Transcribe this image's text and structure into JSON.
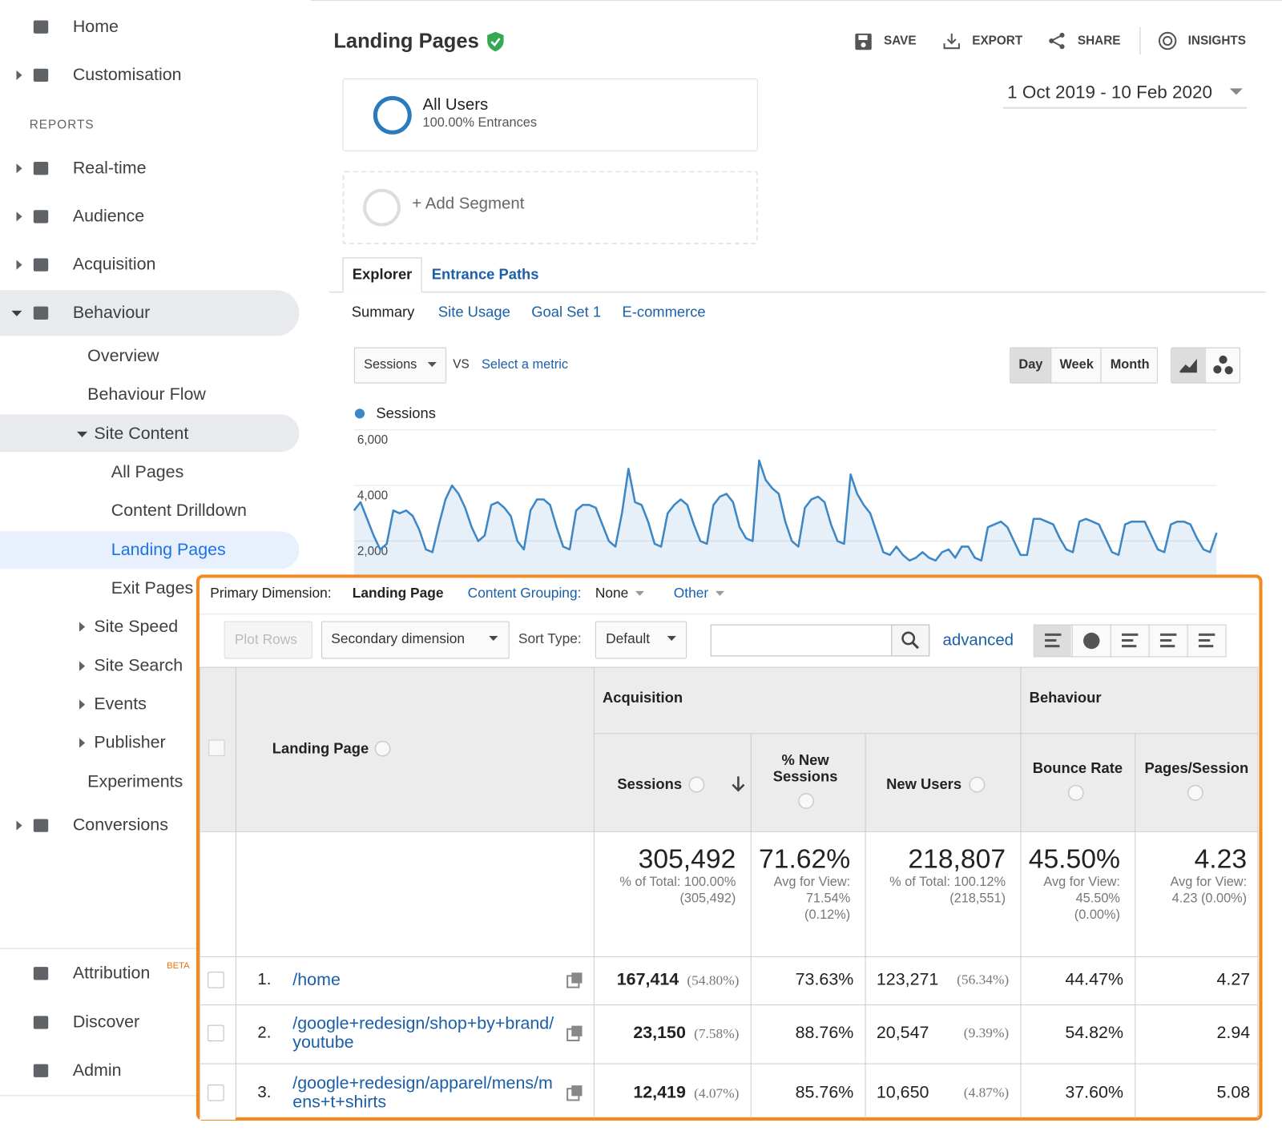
{
  "sidebar": {
    "items": [
      "Home",
      "Customisation",
      "REPORTS",
      "Real-time",
      "Audience",
      "Acquisition",
      "Behaviour",
      "Overview",
      "Behaviour Flow",
      "Site Content",
      "All Pages",
      "Content Drilldown",
      "Landing Pages",
      "Exit Pages",
      "Site Speed",
      "Site Search",
      "Events",
      "Publisher",
      "Experiments",
      "Conversions",
      "Attribution",
      "Discover",
      "Admin"
    ],
    "beta": "BETA"
  },
  "header": {
    "title": "Landing Pages",
    "actions": [
      "SAVE",
      "EXPORT",
      "SHARE",
      "INSIGHTS"
    ],
    "date_range": "1 Oct 2019 - 10 Feb 2020"
  },
  "segments": [
    {
      "name": "All Users",
      "detail": "100.00% Entrances"
    },
    {
      "name": "+ Add Segment"
    }
  ],
  "tabs": [
    "Explorer",
    "Entrance Paths"
  ],
  "subtabs": [
    "Summary",
    "Site Usage",
    "Goal Set 1",
    "E-commerce"
  ],
  "metric_select": "Sessions",
  "vs": "VS",
  "select_metric": "Select a metric",
  "granularity": [
    "Day",
    "Week",
    "Month"
  ],
  "chart_data": {
    "type": "line",
    "series": [
      {
        "name": "Sessions",
        "color": "#3d87c6",
        "values": [
          3100,
          3400,
          2800,
          2200,
          1700,
          1900,
          3100,
          3000,
          3100,
          2900,
          2400,
          1700,
          1600,
          2600,
          3500,
          4000,
          3700,
          3200,
          2500,
          2000,
          2200,
          3300,
          3400,
          3200,
          2900,
          2000,
          1700,
          3100,
          3500,
          3500,
          3300,
          2500,
          1800,
          1700,
          3100,
          3300,
          3300,
          3200,
          2600,
          2000,
          1800,
          3000,
          4600,
          3400,
          3300,
          2700,
          1900,
          1800,
          3000,
          3300,
          3500,
          3300,
          2600,
          2000,
          1900,
          3300,
          3600,
          3700,
          3400,
          2500,
          2100,
          2000,
          4900,
          4200,
          3900,
          3700,
          2700,
          2000,
          1800,
          3200,
          3500,
          3600,
          3400,
          2600,
          2000,
          1900,
          4400,
          3700,
          3300,
          3000,
          2300,
          1600,
          1500,
          1800,
          1500,
          1300,
          1400,
          1600,
          1400,
          1300,
          1600,
          1700,
          1400,
          1800,
          1800,
          1400,
          1300,
          2500,
          2600,
          2700,
          2500,
          2000,
          1500,
          1500,
          2800,
          2800,
          2700,
          2600,
          2100,
          1700,
          1600,
          2700,
          2800,
          2700,
          2600,
          2100,
          1600,
          1500,
          2600,
          2700,
          2700,
          2700,
          2200,
          1700,
          1600,
          2600,
          2700,
          2700,
          2600,
          2100,
          1700,
          1600,
          2300
        ]
      }
    ],
    "ylim": [
      0,
      6000
    ],
    "yticks": [
      {
        "value": 2000,
        "label": "2,000"
      },
      {
        "value": 4000,
        "label": "4,000"
      },
      {
        "value": 6000,
        "label": "6,000"
      }
    ],
    "grid": true
  },
  "table": {
    "primary_dimension_label": "Primary Dimension:",
    "primary_dimension": "Landing Page",
    "content_grouping_label": "Content Grouping:",
    "content_grouping": "None",
    "other": "Other",
    "plot_rows": "Plot Rows",
    "secondary_dimension": "Secondary dimension",
    "sort_type_label": "Sort Type:",
    "sort_type": "Default",
    "advanced": "advanced",
    "groups": [
      "Acquisition",
      "Behaviour"
    ],
    "columns": [
      "Landing Page",
      "Sessions",
      "% New Sessions",
      "New Users",
      "Bounce Rate",
      "Pages/Session"
    ],
    "totals": [
      {
        "value": "305,492",
        "detail": "% of Total: 100.00% (305,492)"
      },
      {
        "value": "71.62%",
        "detail": "Avg for View: 71.54% (0.12%)"
      },
      {
        "value": "218,807",
        "detail": "% of Total: 100.12% (218,551)"
      },
      {
        "value": "45.50%",
        "detail": "Avg for View: 45.50% (0.00%)"
      },
      {
        "value": "4.23",
        "detail": "Avg for View: 4.23 (0.00%)"
      }
    ],
    "rows": [
      {
        "index": "1.",
        "page": "/home",
        "sessions": "167,414",
        "sessions_share": "(54.80%)",
        "new_sessions": "73.63%",
        "new_users": "123,271",
        "new_users_share": "(56.34%)",
        "bounce_rate": "44.47%",
        "pages_per_session": "4.27"
      },
      {
        "index": "2.",
        "page": "/google+redesign/shop+by+brand/youtube",
        "sessions": "23,150",
        "sessions_share": "(7.58%)",
        "new_sessions": "88.76%",
        "new_users": "20,547",
        "new_users_share": "(9.39%)",
        "bounce_rate": "54.82%",
        "pages_per_session": "2.94"
      },
      {
        "index": "3.",
        "page": "/google+redesign/apparel/mens/mens+t+shirts",
        "sessions": "12,419",
        "sessions_share": "(4.07%)",
        "new_sessions": "85.76%",
        "new_users": "10,650",
        "new_users_share": "(4.87%)",
        "bounce_rate": "37.60%",
        "pages_per_session": "5.08"
      }
    ]
  }
}
